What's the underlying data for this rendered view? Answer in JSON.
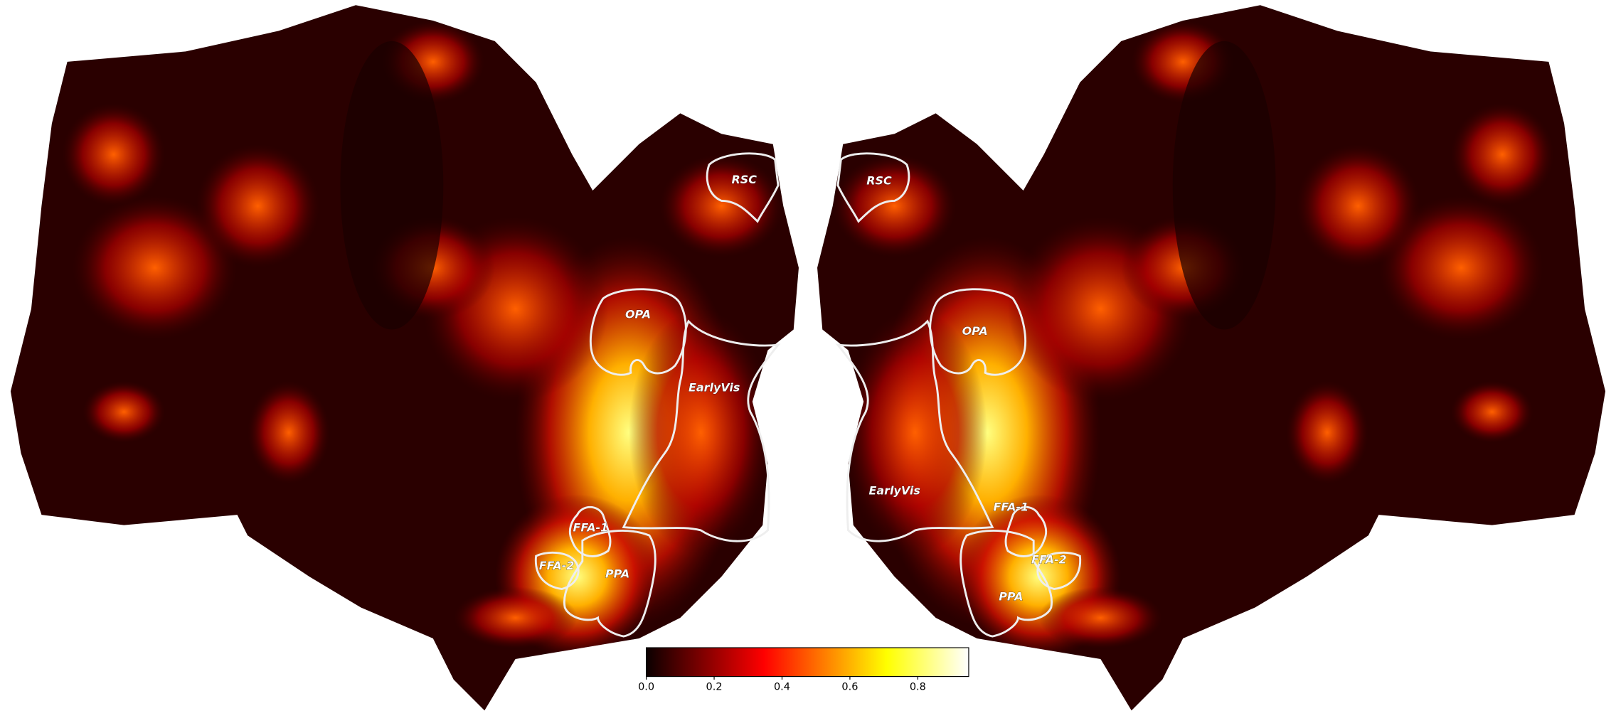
{
  "left_hemisphere": {
    "rois": [
      "RSC",
      "OPA",
      "EarlyVis",
      "FFA-1",
      "FFA-2",
      "PPA"
    ]
  },
  "right_hemisphere": {
    "rois": [
      "RSC",
      "OPA",
      "EarlyVis",
      "FFA-1",
      "FFA-2",
      "PPA"
    ]
  },
  "colorbar": {
    "colormap": "hot",
    "lim": [
      0,
      0.95
    ],
    "ticks": [
      {
        "value": 0,
        "label": "0.0"
      },
      0.2,
      0.4,
      0.6,
      0.8
    ]
  }
}
